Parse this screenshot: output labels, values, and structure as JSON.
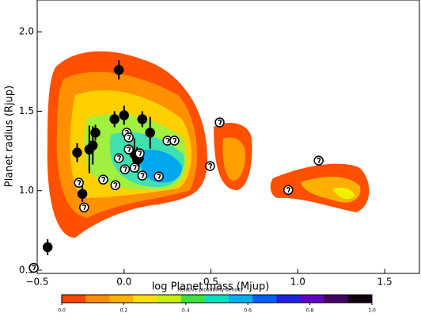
{
  "chart_data": {
    "type": "scatter",
    "xlabel": "log Planet mass (Mjup)",
    "ylabel": "Planet radius (Rjup)",
    "xlim": [
      -0.5,
      1.7
    ],
    "ylim": [
      0.48,
      2.2
    ],
    "xticks": [
      {
        "value": -0.5,
        "label": "−0.5"
      },
      {
        "value": 0,
        "label": "0.0"
      },
      {
        "value": 0.5,
        "label": "0.5"
      },
      {
        "value": 1,
        "label": "1.0"
      },
      {
        "value": 1.5,
        "label": "1.5"
      }
    ],
    "yticks": [
      0.5,
      {
        "value": 1,
        "label": "1.0"
      },
      1.5,
      {
        "value": 2,
        "label": "2.0"
      }
    ],
    "series": [
      {
        "color": "#000000",
        "x": [
          -0.44,
          -0.27,
          -0.24,
          -0.2,
          -0.18,
          -0.165,
          -0.03,
          -0.055,
          0,
          0.06,
          0.075,
          0.085,
          0.105,
          0.15
        ],
        "values": [
          0.645,
          1.24,
          0.98,
          1.26,
          1.285,
          1.365,
          1.76,
          1.45,
          1.475,
          1.23,
          1.195,
          1.205,
          1.45,
          1.365
        ],
        "errors": [
          0.05,
          0.06,
          0.05,
          0.15,
          0.12,
          0.05,
          0.06,
          0.05,
          0.06,
          0.1,
          0.08,
          0.06,
          0.05,
          0.1
        ]
      },
      {
        "color": "#ffffff",
        "x": [
          -0.26,
          -0.23,
          -0.12,
          -0.05,
          -0.03,
          0.015,
          0.027,
          0.027,
          0.005,
          0.06,
          0.09,
          0.105,
          0.2,
          0.25,
          0.29,
          0.495,
          0.55,
          0.945,
          1.12,
          -0.52
        ],
        "values": [
          1.05,
          0.895,
          1.07,
          1.035,
          1.205,
          1.365,
          1.335,
          1.26,
          1.135,
          1.145,
          1.235,
          1.095,
          1.09,
          1.315,
          1.315,
          1.155,
          1.43,
          1.005,
          1.19,
          0.515
        ]
      }
    ],
    "colorbar": {
      "label": "Relative probability density",
      "lim": [
        0,
        1
      ],
      "colors": [
        "#ff4500",
        "#ff8c00",
        "#ffb000",
        "#ffe000",
        "#c8f000",
        "#40e040",
        "#00e0c0",
        "#00b0f0",
        "#0060ff",
        "#2020e0",
        "#6000c0",
        "#400060",
        "#100010"
      ],
      "ticks": [
        {
          "value": 0,
          "label": "0.0"
        },
        0.2,
        0.4,
        0.6,
        0.8,
        {
          "value": 1,
          "label": "1.0"
        }
      ]
    }
  }
}
